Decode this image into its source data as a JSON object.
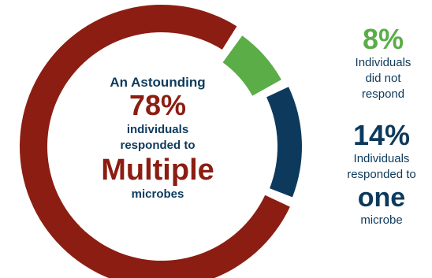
{
  "chart_data": {
    "type": "pie",
    "style": "donut",
    "slices": [
      {
        "label": "responded to Multiple microbes",
        "value": 78,
        "color": "#8c1d12"
      },
      {
        "label": "responded to one microbe",
        "value": 14,
        "color": "#0d3a5c"
      },
      {
        "label": "did not respond",
        "value": 8,
        "color": "#5aad47"
      }
    ],
    "center": {
      "intro": "An Astounding",
      "percent": "78%",
      "line1": "individuals",
      "line2": "responded to",
      "emphasis": "Multiple",
      "line3": "microbes"
    },
    "labels": {
      "green": {
        "percent": "8%",
        "lines": [
          "Individuals",
          "did not",
          "respond"
        ]
      },
      "blue": {
        "percent": "14%",
        "line1": "Individuals",
        "line2": "responded to",
        "emphasis": "one",
        "line3": "microbe"
      }
    }
  }
}
